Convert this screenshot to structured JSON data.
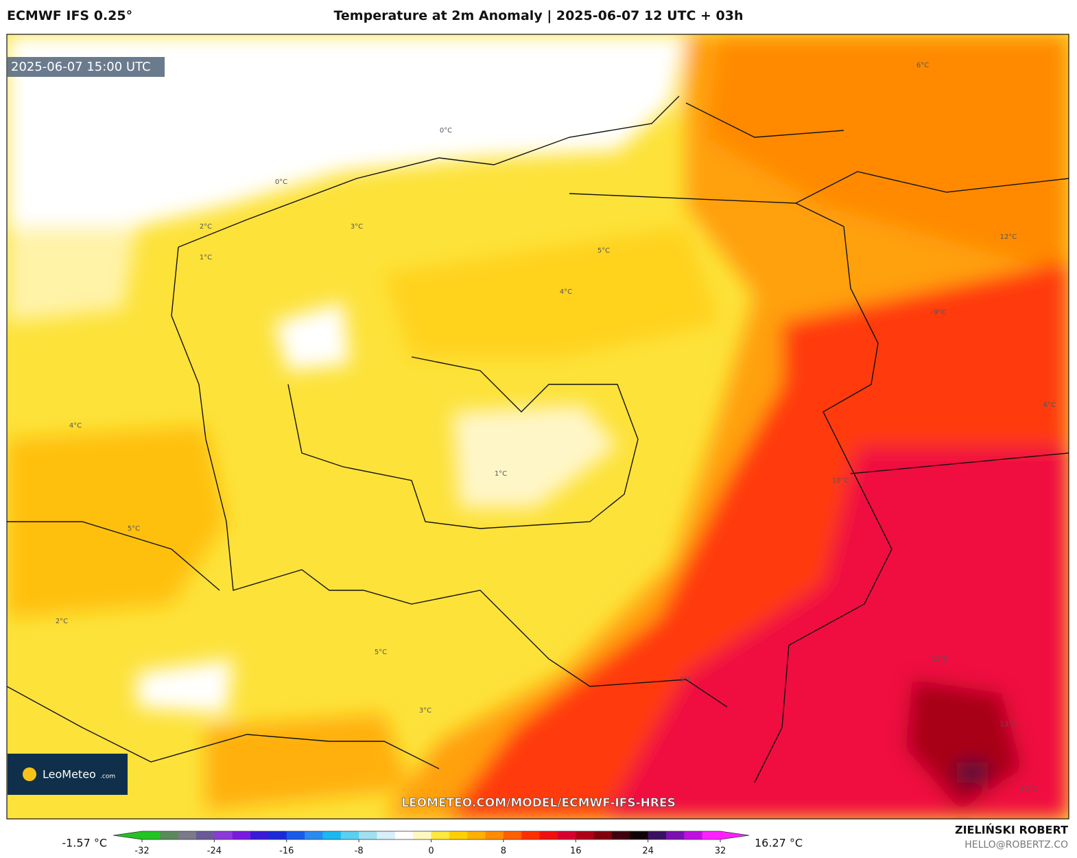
{
  "header": {
    "model": "ECMWF IFS 0.25°",
    "title": "Temperature at 2m Anomaly | 2025-06-07 12 UTC + 03h"
  },
  "map": {
    "valid_time": "2025-06-07 15:00 UTC",
    "watermark": "LEOMETEO.COM/MODEL/ECMWF-IFS-HRES",
    "logo": "LeoMeteo",
    "logo_suffix": ".com",
    "contour_labels": [
      "0°C",
      "0°C",
      "1°C",
      "1°C",
      "2°C",
      "2°C",
      "3°C",
      "3°C",
      "4°C",
      "4°C",
      "5°C",
      "5°C",
      "5°C",
      "6°C",
      "6°C",
      "9°C",
      "9°C",
      "10°C",
      "11°C",
      "12°C",
      "12°C",
      "13°C"
    ]
  },
  "colorbar": {
    "min_label": "-1.57 °C",
    "max_label": "16.27 °C",
    "lim": [
      -32,
      32
    ],
    "ticks": [
      -32,
      -24,
      -16,
      -8,
      0,
      8,
      16,
      24,
      32
    ],
    "colors": [
      "#22c322",
      "#5a8a5a",
      "#7a7a8a",
      "#6a5a9a",
      "#8a3ad8",
      "#7a1ae0",
      "#3a1ad8",
      "#1a2ad8",
      "#1a5ae8",
      "#2a8af0",
      "#1ab8f0",
      "#5ad0f0",
      "#a0e0f0",
      "#d8eef8",
      "#ffffff",
      "#fff8c0",
      "#ffe840",
      "#ffd000",
      "#ffb000",
      "#ff8c00",
      "#ff6000",
      "#ff3000",
      "#f01010",
      "#d80030",
      "#b00018",
      "#800010",
      "#400010",
      "#100008",
      "#3a1060",
      "#7a10b0",
      "#c010e0",
      "#ff20ff"
    ]
  },
  "footer": {
    "author": "ZIELIŃSKI ROBERT",
    "email": "HELLO@ROBERTZ.CO"
  }
}
